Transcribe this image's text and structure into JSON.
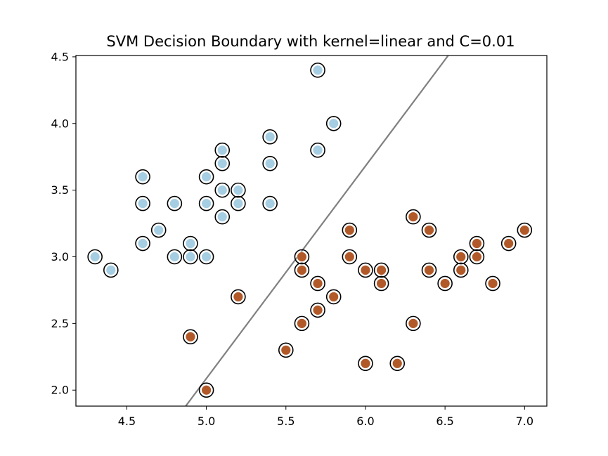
{
  "chart_data": {
    "type": "scatter",
    "title": "SVM Decision Boundary with kernel=linear and C=0.01",
    "xlabel": "",
    "ylabel": "",
    "xlim": [
      4.18,
      7.14
    ],
    "ylim": [
      1.88,
      4.51
    ],
    "x_ticks": [
      "4.5",
      "5.0",
      "5.5",
      "6.0",
      "6.5",
      "7.0"
    ],
    "y_ticks": [
      "2.0",
      "2.5",
      "3.0",
      "3.5",
      "4.0",
      "4.5"
    ],
    "grid": false,
    "legend": "none",
    "decision_boundary": {
      "points": [
        [
          4.87,
          1.88
        ],
        [
          6.52,
          4.51
        ]
      ],
      "color": "#808080"
    },
    "series": [
      {
        "color": "#a6cee3",
        "points": [
          [
            5.7,
            4.4
          ],
          [
            5.8,
            4.0
          ],
          [
            5.4,
            3.9
          ],
          [
            5.1,
            3.8
          ],
          [
            5.7,
            3.8
          ],
          [
            5.1,
            3.7
          ],
          [
            5.4,
            3.7
          ],
          [
            4.6,
            3.6
          ],
          [
            5.0,
            3.6
          ],
          [
            5.1,
            3.5
          ],
          [
            5.2,
            3.5
          ],
          [
            4.6,
            3.4
          ],
          [
            4.8,
            3.4
          ],
          [
            5.0,
            3.4
          ],
          [
            5.2,
            3.4
          ],
          [
            5.4,
            3.4
          ],
          [
            5.1,
            3.3
          ],
          [
            4.7,
            3.2
          ],
          [
            4.6,
            3.1
          ],
          [
            4.9,
            3.1
          ],
          [
            4.3,
            3.0
          ],
          [
            4.8,
            3.0
          ],
          [
            4.9,
            3.0
          ],
          [
            5.0,
            3.0
          ],
          [
            4.4,
            2.9
          ]
        ]
      },
      {
        "color": "#b15928",
        "points": [
          [
            6.3,
            3.3
          ],
          [
            5.9,
            3.2
          ],
          [
            6.4,
            3.2
          ],
          [
            7.0,
            3.2
          ],
          [
            6.7,
            3.1
          ],
          [
            6.9,
            3.1
          ],
          [
            5.6,
            3.0
          ],
          [
            5.9,
            3.0
          ],
          [
            6.6,
            3.0
          ],
          [
            6.7,
            3.0
          ],
          [
            5.6,
            2.9
          ],
          [
            6.0,
            2.9
          ],
          [
            6.1,
            2.9
          ],
          [
            6.4,
            2.9
          ],
          [
            6.6,
            2.9
          ],
          [
            5.7,
            2.8
          ],
          [
            6.1,
            2.8
          ],
          [
            6.5,
            2.8
          ],
          [
            6.8,
            2.8
          ],
          [
            5.2,
            2.7
          ],
          [
            5.8,
            2.7
          ],
          [
            5.7,
            2.6
          ],
          [
            5.6,
            2.5
          ],
          [
            6.3,
            2.5
          ],
          [
            4.9,
            2.4
          ],
          [
            5.5,
            2.3
          ],
          [
            6.0,
            2.2
          ],
          [
            6.2,
            2.2
          ],
          [
            5.0,
            2.0
          ]
        ]
      }
    ]
  }
}
